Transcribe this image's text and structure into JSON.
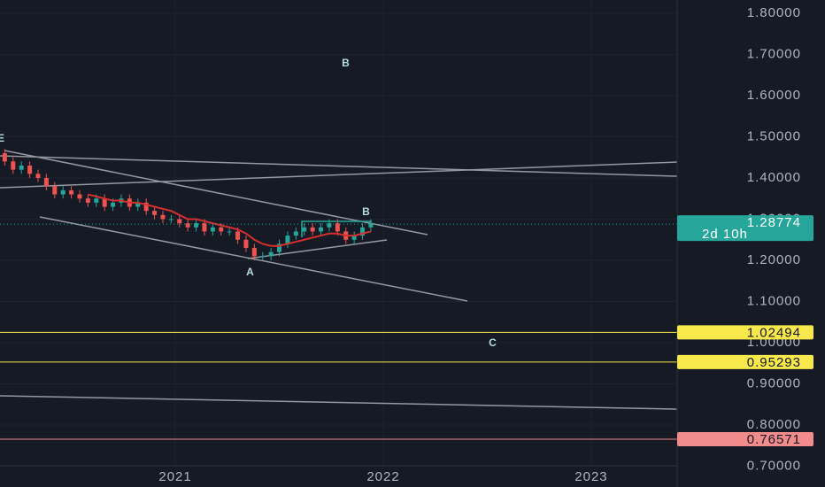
{
  "chart_data": {
    "type": "candlestick",
    "x": [
      2020.18,
      2020.22,
      2020.26,
      2020.3,
      2020.34,
      2020.38,
      2020.42,
      2020.46,
      2020.5,
      2020.54,
      2020.58,
      2020.62,
      2020.66,
      2020.7,
      2020.74,
      2020.78,
      2020.82,
      2020.86,
      2020.9,
      2020.94,
      2020.98,
      2021.02,
      2021.06,
      2021.1,
      2021.14,
      2021.18,
      2021.22,
      2021.26,
      2021.3,
      2021.34,
      2021.38,
      2021.42,
      2021.46,
      2021.5,
      2021.54,
      2021.58,
      2021.62,
      2021.66,
      2021.7,
      2021.74,
      2021.78,
      2021.82,
      2021.86,
      2021.9,
      2021.94
    ],
    "open": [
      1.46,
      1.44,
      1.42,
      1.43,
      1.41,
      1.4,
      1.38,
      1.36,
      1.37,
      1.36,
      1.35,
      1.34,
      1.35,
      1.33,
      1.34,
      1.35,
      1.33,
      1.34,
      1.32,
      1.31,
      1.3,
      1.3,
      1.29,
      1.28,
      1.29,
      1.27,
      1.28,
      1.27,
      1.27,
      1.25,
      1.23,
      1.21,
      1.21,
      1.22,
      1.24,
      1.26,
      1.27,
      1.28,
      1.27,
      1.28,
      1.29,
      1.27,
      1.25,
      1.26,
      1.28
    ],
    "high": [
      1.47,
      1.45,
      1.44,
      1.44,
      1.42,
      1.41,
      1.39,
      1.38,
      1.38,
      1.37,
      1.36,
      1.36,
      1.36,
      1.35,
      1.36,
      1.36,
      1.35,
      1.35,
      1.33,
      1.32,
      1.31,
      1.31,
      1.3,
      1.3,
      1.3,
      1.29,
      1.29,
      1.28,
      1.28,
      1.26,
      1.24,
      1.22,
      1.23,
      1.25,
      1.27,
      1.28,
      1.29,
      1.29,
      1.29,
      1.3,
      1.3,
      1.28,
      1.27,
      1.29,
      1.3
    ],
    "low": [
      1.43,
      1.41,
      1.41,
      1.4,
      1.39,
      1.37,
      1.35,
      1.35,
      1.35,
      1.34,
      1.33,
      1.33,
      1.32,
      1.32,
      1.33,
      1.32,
      1.32,
      1.31,
      1.3,
      1.29,
      1.29,
      1.28,
      1.27,
      1.27,
      1.26,
      1.26,
      1.26,
      1.26,
      1.24,
      1.22,
      1.2,
      1.2,
      1.2,
      1.21,
      1.23,
      1.25,
      1.26,
      1.26,
      1.26,
      1.27,
      1.26,
      1.24,
      1.24,
      1.25,
      1.27
    ],
    "close": [
      1.44,
      1.42,
      1.43,
      1.41,
      1.4,
      1.38,
      1.36,
      1.37,
      1.36,
      1.35,
      1.34,
      1.35,
      1.33,
      1.34,
      1.35,
      1.33,
      1.34,
      1.32,
      1.31,
      1.3,
      1.3,
      1.29,
      1.28,
      1.29,
      1.27,
      1.28,
      1.27,
      1.27,
      1.25,
      1.23,
      1.21,
      1.21,
      1.22,
      1.24,
      1.26,
      1.27,
      1.28,
      1.27,
      1.28,
      1.29,
      1.27,
      1.25,
      1.26,
      1.28,
      1.29
    ],
    "up_color": "#26a69a",
    "down_color": "#ef5350",
    "moving_average": {
      "color": "#d32f2f",
      "values": [
        null,
        null,
        null,
        null,
        null,
        null,
        null,
        null,
        null,
        null,
        1.36,
        1.355,
        1.35,
        1.345,
        1.345,
        1.34,
        1.34,
        1.335,
        1.33,
        1.325,
        1.32,
        1.31,
        1.3,
        1.3,
        1.295,
        1.29,
        1.285,
        1.28,
        1.275,
        1.265,
        1.25,
        1.24,
        1.235,
        1.235,
        1.24,
        1.245,
        1.25,
        1.255,
        1.26,
        1.265,
        1.265,
        1.26,
        1.26,
        1.265,
        1.27
      ]
    },
    "last_price": 1.28774,
    "countdown": "2d 10h",
    "last_color": "#26a69a",
    "levels": [
      {
        "value": 1.02494,
        "color": "#f7e94b"
      },
      {
        "value": 0.95293,
        "color": "#f7e94b"
      },
      {
        "value": 0.76571,
        "color": "#f28b8b"
      }
    ],
    "annotations": [
      "E",
      "B",
      "B",
      "A",
      "C"
    ],
    "xlim": [
      2020.157,
      2023.413
    ],
    "xticks": [
      2021,
      2022,
      2023
    ],
    "ylim": [
      0.7,
      1.83
    ],
    "yticks": [
      {
        "value": 0.7,
        "label": "0.70000"
      },
      {
        "value": 0.8,
        "label": "0.80000"
      },
      {
        "value": 0.9,
        "label": "0.90000"
      },
      {
        "value": 1.0,
        "label": "1.00000"
      },
      {
        "value": 1.1,
        "label": "1.10000"
      },
      {
        "value": 1.2,
        "label": "1.20000"
      },
      {
        "value": 1.3,
        "label": "1.30000"
      },
      {
        "value": 1.4,
        "label": "1.40000"
      },
      {
        "value": 1.5,
        "label": "1.50000"
      },
      {
        "value": 1.6,
        "label": "1.60000"
      },
      {
        "value": 1.7,
        "label": "1.70000"
      },
      {
        "value": 1.8,
        "label": "1.80000"
      }
    ],
    "grid": true
  }
}
